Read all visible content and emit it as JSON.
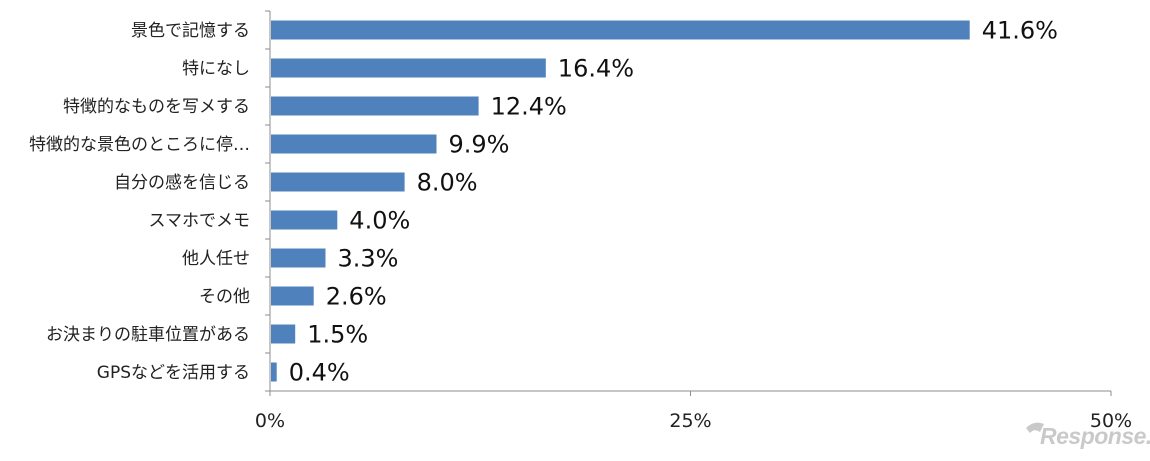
{
  "chart_data": {
    "type": "bar",
    "orientation": "horizontal",
    "categories": [
      "景色で記憶する",
      "特になし",
      "特徴的なものを写メする",
      "特徴的な景色のところに停…",
      "自分の感を信じる",
      "スマホでメモ",
      "他人任せ",
      "その他",
      "お決まりの駐車位置がある",
      "GPSなどを活用する"
    ],
    "values": [
      41.6,
      16.4,
      12.4,
      9.9,
      8.0,
      4.0,
      3.3,
      2.6,
      1.5,
      0.4
    ],
    "value_labels": [
      "41.6%",
      "16.4%",
      "12.4%",
      "9.9%",
      "8.0%",
      "4.0%",
      "3.3%",
      "2.6%",
      "1.5%",
      "0.4%"
    ],
    "xlim": [
      0,
      50
    ],
    "x_ticks": [
      0,
      25,
      50
    ],
    "x_tick_labels": [
      "0%",
      "25%",
      "50%"
    ],
    "grid": false,
    "legend": "none",
    "bar_color": "#4f81bd"
  },
  "watermark": {
    "text": "Response."
  }
}
